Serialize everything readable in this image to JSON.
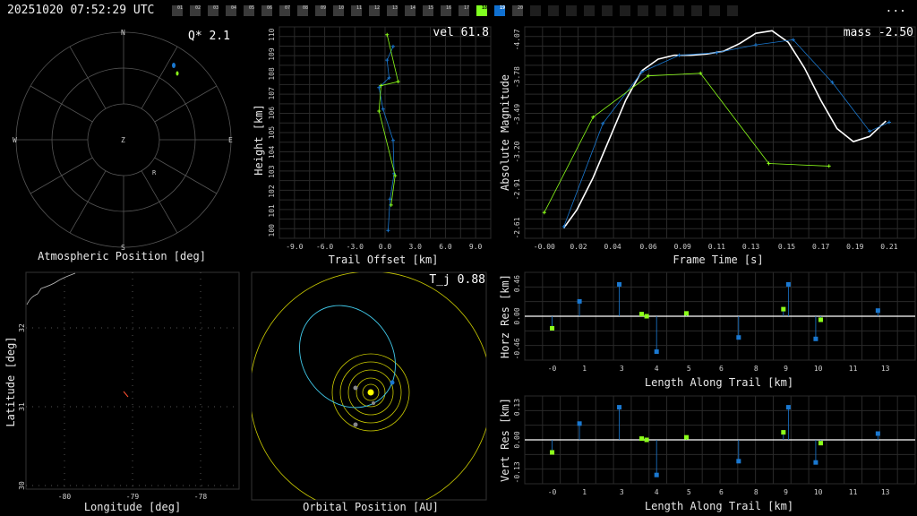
{
  "header": {
    "timestamp": "20251020 07:52:29 UTC",
    "menu": "...",
    "frames": [
      {
        "label": "01",
        "state": "filled"
      },
      {
        "label": "02",
        "state": "filled"
      },
      {
        "label": "03",
        "state": "filled"
      },
      {
        "label": "04",
        "state": "filled"
      },
      {
        "label": "05",
        "state": "filled"
      },
      {
        "label": "06",
        "state": "filled"
      },
      {
        "label": "07",
        "state": "filled"
      },
      {
        "label": "08",
        "state": "filled"
      },
      {
        "label": "09",
        "state": "filled"
      },
      {
        "label": "10",
        "state": "filled"
      },
      {
        "label": "11",
        "state": "filled"
      },
      {
        "label": "12",
        "state": "filled"
      },
      {
        "label": "13",
        "state": "filled"
      },
      {
        "label": "14",
        "state": "filled"
      },
      {
        "label": "15",
        "state": "filled"
      },
      {
        "label": "16",
        "state": "filled"
      },
      {
        "label": "17",
        "state": "filled"
      },
      {
        "label": "18",
        "state": "green"
      },
      {
        "label": "19",
        "state": "blue"
      },
      {
        "label": "20",
        "state": "filled"
      },
      {
        "label": "",
        "state": "empty"
      },
      {
        "label": "",
        "state": "empty"
      },
      {
        "label": "",
        "state": "empty"
      },
      {
        "label": "",
        "state": "empty"
      },
      {
        "label": "",
        "state": "empty"
      },
      {
        "label": "",
        "state": "empty"
      },
      {
        "label": "",
        "state": "empty"
      },
      {
        "label": "",
        "state": "empty"
      },
      {
        "label": "",
        "state": "empty"
      },
      {
        "label": "",
        "state": "empty"
      },
      {
        "label": "",
        "state": "empty"
      },
      {
        "label": "",
        "state": "empty"
      }
    ]
  },
  "colors": {
    "blue": "#1a78d0",
    "green": "#8cff1a",
    "white": "#ffffff",
    "orbit": "#d4d400",
    "comet": "#40c8e8",
    "sun": "#ffff00"
  },
  "sky": {
    "title": "Atmospheric Position [deg]",
    "stat": "Q*  2.1",
    "dirs": {
      "n": "N",
      "s": "S",
      "e": "E",
      "w": "W",
      "z": "Z",
      "r": "R"
    }
  },
  "trail": {
    "stat": "vel 61.8",
    "xlabel": "Trail Offset [km]",
    "ylabel": "Height [km]",
    "xticks": [
      "-9.0",
      "-6.0",
      "-3.0",
      "0.0",
      "3.0",
      "6.0",
      "9.0"
    ],
    "yticks": [
      "100",
      "101",
      "102",
      "103",
      "104",
      "105",
      "106",
      "107",
      "108",
      "109",
      "110"
    ],
    "blue_points": [
      [
        0.3,
        100
      ],
      [
        0.5,
        101.6
      ],
      [
        0.9,
        102.9
      ],
      [
        0.8,
        104.6
      ],
      [
        -0.2,
        106.2
      ],
      [
        -0.6,
        107.3
      ],
      [
        0.4,
        107.8
      ],
      [
        0.2,
        108.7
      ],
      [
        0.8,
        109.4
      ]
    ],
    "green_points": [
      [
        0.6,
        101.3
      ],
      [
        1.0,
        102.8
      ],
      [
        -0.6,
        106.1
      ],
      [
        -0.4,
        107.4
      ],
      [
        1.3,
        107.6
      ],
      [
        0.2,
        110
      ]
    ]
  },
  "lightcurve": {
    "stat": "mass -2.50",
    "xlabel": "Frame Time [s]",
    "ylabel": "Absolute Magnitude",
    "xticks": [
      "-0.00",
      "0.02",
      "0.04",
      "0.06",
      "0.09",
      "0.11",
      "0.13",
      "0.15",
      "0.17",
      "0.19",
      "0.21"
    ],
    "yticks": [
      "-4.07",
      "-3.78",
      "-3.49",
      "-3.20",
      "-2.91",
      "-2.61"
    ],
    "white_curve": [
      [
        0.012,
        -2.61
      ],
      [
        0.02,
        -2.75
      ],
      [
        0.03,
        -3.0
      ],
      [
        0.04,
        -3.3
      ],
      [
        0.05,
        -3.6
      ],
      [
        0.06,
        -3.83
      ],
      [
        0.07,
        -3.92
      ],
      [
        0.08,
        -3.95
      ],
      [
        0.09,
        -3.95
      ],
      [
        0.1,
        -3.96
      ],
      [
        0.11,
        -3.98
      ],
      [
        0.12,
        -4.04
      ],
      [
        0.13,
        -4.12
      ],
      [
        0.14,
        -4.14
      ],
      [
        0.15,
        -4.05
      ],
      [
        0.16,
        -3.85
      ],
      [
        0.17,
        -3.6
      ],
      [
        0.18,
        -3.38
      ],
      [
        0.19,
        -3.28
      ],
      [
        0.2,
        -3.32
      ],
      [
        0.21,
        -3.44
      ]
    ],
    "blue_points": [
      [
        0.012,
        -2.62
      ],
      [
        0.036,
        -3.42
      ],
      [
        0.06,
        -3.82
      ],
      [
        0.083,
        -3.95
      ],
      [
        0.106,
        -3.97
      ],
      [
        0.13,
        -4.03
      ],
      [
        0.153,
        -4.07
      ],
      [
        0.177,
        -3.74
      ],
      [
        0.2,
        -3.36
      ],
      [
        0.212,
        -3.43
      ]
    ],
    "green_points": [
      [
        0.0,
        -2.73
      ],
      [
        0.03,
        -3.47
      ],
      [
        0.064,
        -3.79
      ],
      [
        0.096,
        -3.81
      ],
      [
        0.138,
        -3.11
      ],
      [
        0.175,
        -3.09
      ]
    ]
  },
  "map": {
    "xlabel": "Longitude [deg]",
    "ylabel": "Latitude [deg]",
    "xticks": [
      "-80",
      "-79",
      "-78"
    ],
    "yticks": [
      "30",
      "31",
      "32"
    ]
  },
  "orbit": {
    "title": "Orbital Position [AU]",
    "stat": "T_j 0.88"
  },
  "horz": {
    "xlabel": "Length Along Trail [km]",
    "ylabel": "Horz Res [km]",
    "xticks": [
      "-0",
      "1",
      "3",
      "4",
      "5",
      "6",
      "8",
      "9",
      "10",
      "11",
      "13"
    ],
    "yticks": [
      "0.46",
      "0.00",
      "-0.46"
    ],
    "blue_points": [
      [
        1.0,
        0.21
      ],
      [
        2.6,
        0.45
      ],
      [
        4.1,
        -0.5
      ],
      [
        7.4,
        -0.3
      ],
      [
        9.4,
        0.45
      ],
      [
        10.5,
        -0.32
      ],
      [
        13.0,
        0.08
      ]
    ],
    "green_points": [
      [
        -0.1,
        -0.17
      ],
      [
        3.5,
        0.03
      ],
      [
        3.7,
        0.0
      ],
      [
        5.3,
        0.04
      ],
      [
        9.2,
        0.1
      ],
      [
        10.7,
        -0.05
      ]
    ]
  },
  "vert": {
    "xlabel": "Length Along Trail [km]",
    "ylabel": "Vert Res [km]",
    "xticks": [
      "-0",
      "1",
      "3",
      "4",
      "5",
      "6",
      "8",
      "9",
      "10",
      "11",
      "13"
    ],
    "yticks": [
      "0.13",
      "0.00",
      "-0.13"
    ],
    "blue_points": [
      [
        1.0,
        0.065
      ],
      [
        2.6,
        0.13
      ],
      [
        4.1,
        -0.14
      ],
      [
        7.4,
        -0.085
      ],
      [
        9.4,
        0.13
      ],
      [
        10.5,
        -0.09
      ],
      [
        13.0,
        0.025
      ]
    ],
    "green_points": [
      [
        -0.1,
        -0.05
      ],
      [
        3.5,
        0.005
      ],
      [
        3.7,
        0.0
      ],
      [
        5.3,
        0.01
      ],
      [
        9.2,
        0.03
      ],
      [
        10.7,
        -0.013
      ]
    ]
  }
}
